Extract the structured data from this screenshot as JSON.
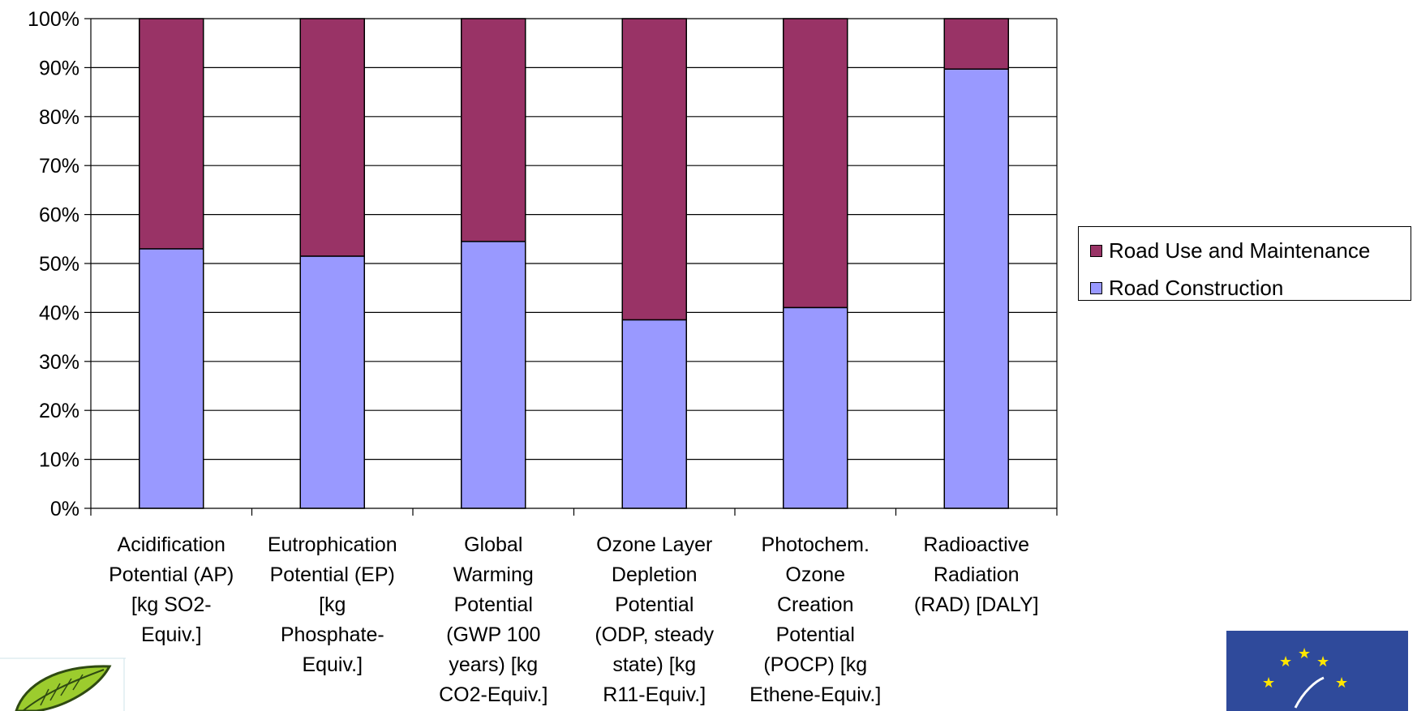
{
  "chart_data": {
    "type": "bar",
    "stacked": true,
    "percent_stacked": true,
    "categories": [
      [
        "Acidification",
        "Potential (AP)",
        "[kg SO2-",
        "Equiv.]"
      ],
      [
        "Eutrophication",
        "Potential (EP)",
        "[kg",
        "Phosphate-",
        "Equiv.]"
      ],
      [
        "Global",
        "Warming",
        "Potential",
        "(GWP 100",
        "years) [kg",
        "CO2-Equiv.]"
      ],
      [
        "Ozone Layer",
        "Depletion",
        "Potential",
        "(ODP, steady",
        "state) [kg",
        "R11-Equiv.]"
      ],
      [
        "Photochem.",
        "Ozone",
        "Creation",
        "Potential",
        "(POCP) [kg",
        "Ethene-Equiv.]"
      ],
      [
        "Radioactive",
        "Radiation",
        "(RAD) [DALY]"
      ]
    ],
    "series": [
      {
        "name": "Road Construction",
        "color": "#9999ff",
        "values": [
          53,
          51.5,
          54.5,
          38.5,
          41,
          89.7
        ]
      },
      {
        "name": "Road Use and Maintenance",
        "color": "#993366",
        "values": [
          47,
          48.5,
          45.5,
          61.5,
          59,
          10.3
        ]
      }
    ],
    "ylim": [
      0,
      100
    ],
    "yticks": [
      "0%",
      "10%",
      "20%",
      "30%",
      "40%",
      "50%",
      "60%",
      "70%",
      "80%",
      "90%",
      "100%"
    ],
    "grid": true,
    "legend_position": "right",
    "legend": [
      "Road Use and Maintenance",
      "Road Construction"
    ]
  },
  "legend_colors": {
    "use": "#993366",
    "construction": "#9999ff"
  },
  "logos": {
    "left": "leaf-logo",
    "right": "eu-flag-logo"
  }
}
